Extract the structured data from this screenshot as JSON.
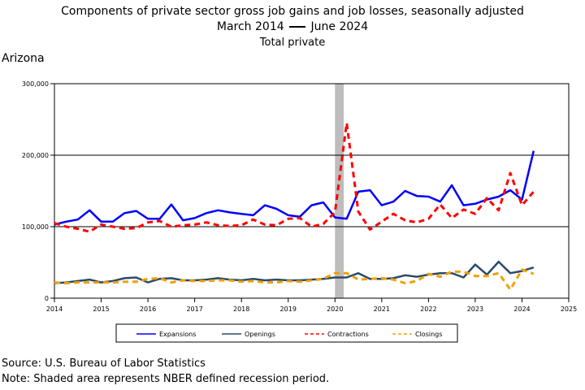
{
  "header": {
    "title_line1": "Components of private sector gross job gains and job losses, seasonally adjusted",
    "title_line2_start": "March 2014",
    "title_line2_end": "June 2024",
    "subtitle": "Total private",
    "region": "Arizona"
  },
  "footer": {
    "source": "Source: U.S. Bureau of Labor Statistics",
    "note": "Note: Shaded area represents NBER defined recession period."
  },
  "chart_data": {
    "type": "line",
    "ylim": [
      0,
      300000
    ],
    "xlim": [
      2014,
      2025
    ],
    "y_ticks": [
      0,
      100000,
      200000,
      300000
    ],
    "y_tick_labels": [
      "0",
      "100,000",
      "200,000",
      "300,000"
    ],
    "x_ticks": [
      2014,
      2015,
      2016,
      2017,
      2018,
      2019,
      2020,
      2021,
      2022,
      2023,
      2024,
      2025
    ],
    "gridlines_y": [
      100000,
      200000
    ],
    "recession": {
      "start": 2020.0,
      "end": 2020.17,
      "color": "#bdbdbd"
    },
    "legend_position": "bottom",
    "x": [
      2014.0,
      2014.25,
      2014.5,
      2014.75,
      2015.0,
      2015.25,
      2015.5,
      2015.75,
      2016.0,
      2016.25,
      2016.5,
      2016.75,
      2017.0,
      2017.25,
      2017.5,
      2017.75,
      2018.0,
      2018.25,
      2018.5,
      2018.75,
      2019.0,
      2019.25,
      2019.5,
      2019.75,
      2020.0,
      2020.25,
      2020.5,
      2020.75,
      2021.0,
      2021.25,
      2021.5,
      2021.75,
      2022.0,
      2022.25,
      2022.5,
      2022.75,
      2023.0,
      2023.25,
      2023.5,
      2023.75,
      2024.0,
      2024.25
    ],
    "series": [
      {
        "name": "Expansions",
        "color": "#0000ff",
        "dash": "solid",
        "values": [
          103000,
          107000,
          110000,
          123000,
          107000,
          107000,
          119000,
          122000,
          111000,
          111000,
          131000,
          109000,
          112000,
          119000,
          123000,
          120000,
          118000,
          116000,
          130000,
          125000,
          116000,
          114000,
          130000,
          134000,
          113000,
          111000,
          149000,
          151000,
          130000,
          135000,
          150000,
          143000,
          142000,
          135000,
          158000,
          130000,
          132000,
          138000,
          142000,
          151000,
          138000,
          206000
        ]
      },
      {
        "name": "Openings",
        "color": "#2b4a6b",
        "dash": "solid",
        "values": [
          21000,
          22000,
          24000,
          26000,
          22000,
          24000,
          28000,
          29000,
          22000,
          27000,
          28000,
          25000,
          25000,
          26000,
          28000,
          26000,
          25000,
          27000,
          25000,
          26000,
          25000,
          25000,
          26000,
          27000,
          29000,
          29000,
          35000,
          27000,
          27000,
          28000,
          32000,
          30000,
          33000,
          35000,
          35000,
          29000,
          47000,
          33000,
          51000,
          35000,
          38000,
          43000
        ]
      },
      {
        "name": "Contractions",
        "color": "#ff0000",
        "dash": "dash",
        "values": [
          105000,
          100000,
          97000,
          93000,
          103000,
          100000,
          97000,
          98000,
          106000,
          108000,
          100000,
          102000,
          103000,
          106000,
          102000,
          101000,
          102000,
          110000,
          103000,
          102000,
          111000,
          112000,
          100000,
          104000,
          120000,
          245000,
          121000,
          96000,
          107000,
          118000,
          109000,
          106000,
          111000,
          131000,
          112000,
          124000,
          118000,
          140000,
          123000,
          175000,
          130000,
          149000
        ]
      },
      {
        "name": "Closings",
        "color": "#f0a000",
        "dash": "dash",
        "values": [
          22000,
          21000,
          22000,
          22000,
          22000,
          22000,
          23000,
          23000,
          27000,
          28000,
          22000,
          25000,
          24000,
          24000,
          25000,
          25000,
          23000,
          24000,
          22000,
          22000,
          24000,
          23000,
          25000,
          27000,
          35000,
          35000,
          26000,
          27000,
          28000,
          26000,
          21000,
          24000,
          34000,
          30000,
          37000,
          37000,
          31000,
          31000,
          35000,
          12000,
          40000,
          34000
        ]
      }
    ]
  }
}
